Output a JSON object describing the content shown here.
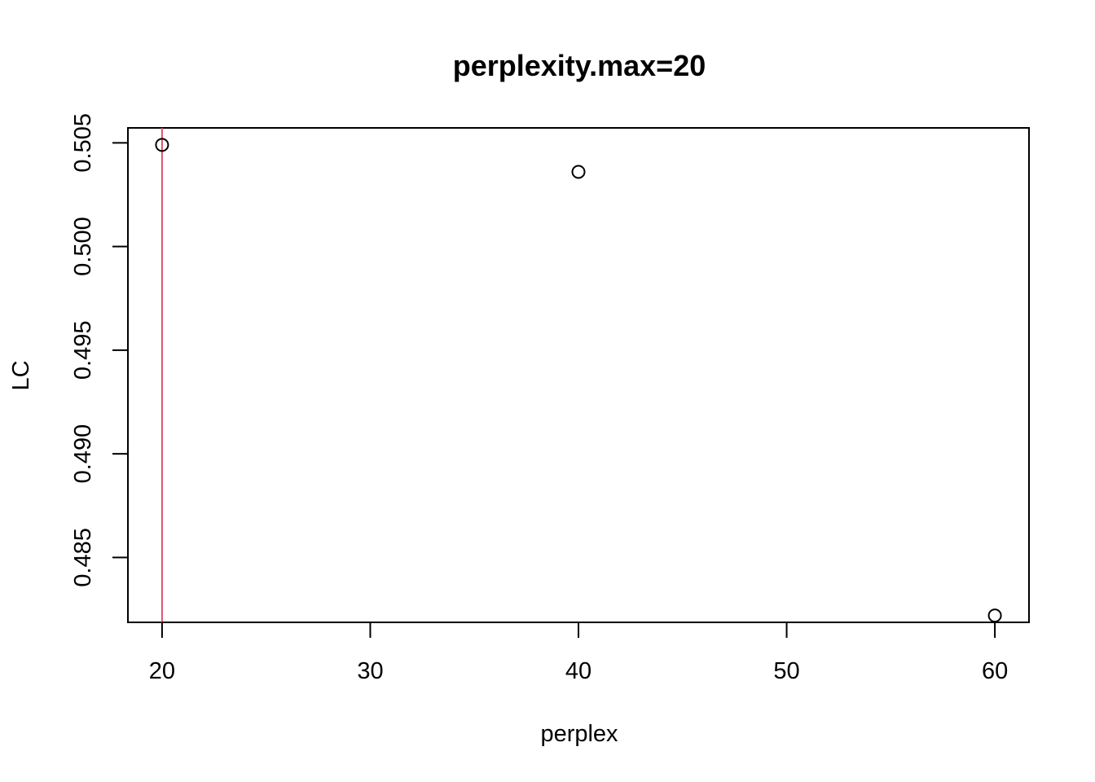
{
  "chart_data": {
    "type": "scatter",
    "title": "perplexity.max=20",
    "xlabel": "perplex",
    "ylabel": "LC",
    "x": [
      20,
      40,
      60
    ],
    "y": [
      0.5049,
      0.5036,
      0.4822
    ],
    "xlim": [
      18.36,
      61.64
    ],
    "ylim": [
      0.48187,
      0.50572
    ],
    "xticks": [
      20,
      30,
      40,
      50,
      60
    ],
    "xtick_labels": [
      "20",
      "30",
      "40",
      "50",
      "60"
    ],
    "yticks": [
      0.485,
      0.49,
      0.495,
      0.5,
      0.505
    ],
    "ytick_labels": [
      "0.485",
      "0.490",
      "0.495",
      "0.500",
      "0.505"
    ],
    "reference_lines": [
      {
        "orientation": "vertical",
        "x": 20,
        "color": "#DF536B"
      }
    ],
    "marker": "open-circle",
    "grid": false,
    "legend": "none"
  }
}
